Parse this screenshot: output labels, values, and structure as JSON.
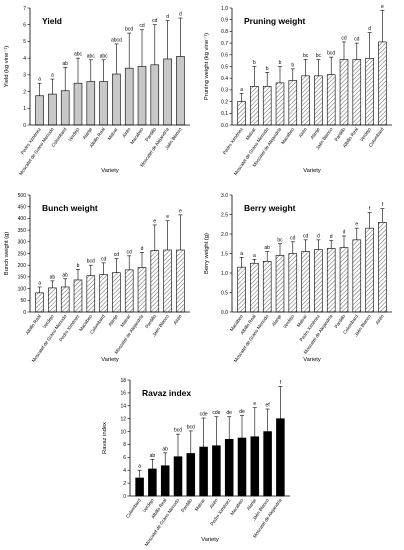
{
  "colors": {
    "yield_fill": "#c8c8c8",
    "hatch_stroke": "#000000",
    "ravaz_fill": "#000000",
    "axis": "#000000"
  },
  "chart_data": [
    {
      "id": "yield",
      "type": "bar",
      "title": "Yield",
      "xlabel": "Variety",
      "ylabel": "Yield (kg vine⁻¹)",
      "ylim": [
        0,
        7
      ],
      "yticks": [
        0,
        1,
        2,
        3,
        4,
        5,
        6,
        7
      ],
      "tick_labels": [
        "0",
        "1",
        "2",
        "3",
        "4",
        "5",
        "6",
        "7"
      ],
      "fill": "gray",
      "categories": [
        "Pedro Ximénez",
        "Moscatel de Grano Menudo",
        "Colombard",
        "Verdejo",
        "Alarije",
        "Albillo Real",
        "Malvar",
        "Airén",
        "Macabeo",
        "Pardillo",
        "Moscatel de Alejandría",
        "Jaén Blanco"
      ],
      "values": [
        1.75,
        1.85,
        2.05,
        2.5,
        2.6,
        2.6,
        3.05,
        3.4,
        3.5,
        3.6,
        3.95,
        4.1
      ],
      "errors": [
        0.75,
        0.9,
        1.4,
        1.5,
        1.3,
        1.3,
        1.8,
        2.1,
        2.2,
        2.4,
        2.3,
        2.3
      ],
      "sig_letters": [
        "a",
        "a",
        "ab",
        "abc",
        "abc",
        "abc",
        "abcd",
        "bcd",
        "cd",
        "cd",
        "d",
        "d"
      ]
    },
    {
      "id": "pruning",
      "type": "bar",
      "title": "Pruning weight",
      "xlabel": "Variety",
      "ylabel": "Pruning weight (kg vine⁻¹)",
      "ylim": [
        0,
        1.0
      ],
      "yticks": [
        0,
        0.1,
        0.2,
        0.3,
        0.4,
        0.5,
        0.6,
        0.7,
        0.8,
        0.9,
        1.0
      ],
      "tick_labels": [
        "0.0",
        "0.1",
        "0.2",
        "0.3",
        "0.4",
        "0.5",
        "0.6",
        "0.7",
        "0.8",
        "0.9",
        "1.0"
      ],
      "fill": "hatch",
      "categories": [
        "Pedro Ximénez",
        "Malvar",
        "Moscatel de Grano Menudo",
        "Moscatel de Alejandría",
        "Macabeo",
        "Airén",
        "Alarije",
        "Jaén Blanco",
        "Pardillo",
        "Albillo Real",
        "Verdejo",
        "Colombard"
      ],
      "values": [
        0.2,
        0.33,
        0.33,
        0.36,
        0.38,
        0.42,
        0.42,
        0.43,
        0.56,
        0.56,
        0.57,
        0.71
      ],
      "errors": [
        0.07,
        0.17,
        0.12,
        0.14,
        0.1,
        0.14,
        0.14,
        0.15,
        0.15,
        0.14,
        0.22,
        0.27
      ],
      "sig_letters": [
        "a",
        "b",
        "b",
        "b",
        "b",
        "bc",
        "bc",
        "bcd",
        "cd",
        "cd",
        "d",
        "e"
      ]
    },
    {
      "id": "bunch",
      "type": "bar",
      "title": "Bunch weight",
      "xlabel": "Variety",
      "ylabel": "Bunch weight (g)",
      "ylim": [
        0,
        500
      ],
      "yticks": [
        0,
        50,
        100,
        150,
        200,
        250,
        300,
        350,
        400,
        450,
        500
      ],
      "tick_labels": [
        "0",
        "50",
        "100",
        "150",
        "200",
        "250",
        "300",
        "350",
        "400",
        "450",
        "500"
      ],
      "fill": "hatch",
      "categories": [
        "Albillo Real",
        "Verdejo",
        "Moscatel de Grano Menudo",
        "Pedro Ximénez",
        "Macabeo",
        "Colombard",
        "Alarije",
        "Malvar",
        "Moscatel de Alejandría",
        "Pardillo",
        "Jaén Blanco",
        "Airén"
      ],
      "values": [
        82,
        103,
        107,
        137,
        155,
        160,
        168,
        180,
        190,
        262,
        265,
        265
      ],
      "errors": [
        25,
        30,
        35,
        45,
        45,
        50,
        60,
        60,
        65,
        110,
        125,
        150
      ],
      "sig_letters": [
        "a",
        "ab",
        "ab",
        "b",
        "bcd",
        "cd",
        "cd",
        "cd",
        "d",
        "e",
        "e",
        "e"
      ]
    },
    {
      "id": "berry",
      "type": "bar",
      "title": "Berry weight",
      "xlabel": "Variety",
      "ylabel": "Berry weight (g)",
      "ylim": [
        0,
        3.0
      ],
      "yticks": [
        0,
        0.5,
        1.0,
        1.5,
        2.0,
        2.5,
        3.0
      ],
      "tick_labels": [
        "0.0",
        "0.5",
        "1.0",
        "1.5",
        "2.0",
        "2.5",
        "3.0"
      ],
      "fill": "hatch",
      "categories": [
        "Macabeo",
        "Albillo Real",
        "Moscatel de Grano Menudo",
        "Alarije",
        "Verdejo",
        "Malvar",
        "Pedro Ximénez",
        "Moscatel de Alejandría",
        "Pardillo",
        "Colombard",
        "Jaén Blanco",
        "Airén"
      ],
      "values": [
        1.15,
        1.25,
        1.3,
        1.45,
        1.5,
        1.55,
        1.6,
        1.63,
        1.65,
        1.85,
        2.15,
        2.3
      ],
      "errors": [
        0.25,
        0.1,
        0.25,
        0.3,
        0.3,
        0.3,
        0.25,
        0.2,
        0.3,
        0.3,
        0.4,
        0.35
      ],
      "sig_letters": [
        "a",
        "a",
        "ab",
        "bc",
        "cd",
        "cd",
        "d",
        "d",
        "d",
        "e",
        "f",
        "f"
      ]
    },
    {
      "id": "ravaz",
      "type": "bar",
      "title": "Ravaz index",
      "xlabel": "Variety",
      "ylabel": "Ravaz index",
      "ylim": [
        0,
        18
      ],
      "yticks": [
        0,
        2,
        4,
        6,
        8,
        10,
        12,
        14,
        16,
        18
      ],
      "tick_labels": [
        "0",
        "2",
        "4",
        "6",
        "8",
        "10",
        "12",
        "14",
        "16",
        "18"
      ],
      "fill": "black",
      "categories": [
        "Colombard",
        "Verdejo",
        "Albillo Real",
        "Moscatel de Grano Menudo",
        "Pardillo",
        "Malvar",
        "Airén",
        "Pedro Ximénez",
        "Macabeo",
        "Alarije",
        "Jaén Blanco",
        "Moscatel de Alejandría"
      ],
      "values": [
        2.8,
        4.2,
        4.7,
        6.1,
        6.6,
        7.6,
        7.8,
        8.8,
        9.0,
        9.2,
        10.0,
        12.0
      ],
      "errors": [
        1.2,
        1.5,
        2.0,
        3.5,
        3.5,
        4.5,
        4.5,
        3.5,
        3.5,
        4.5,
        3.5,
        5.0
      ],
      "sig_letters": [
        "a",
        "ab",
        "ab",
        "bcd",
        "bcd",
        "cde",
        "cde",
        "de",
        "de",
        "e",
        "ef",
        "f"
      ]
    }
  ]
}
